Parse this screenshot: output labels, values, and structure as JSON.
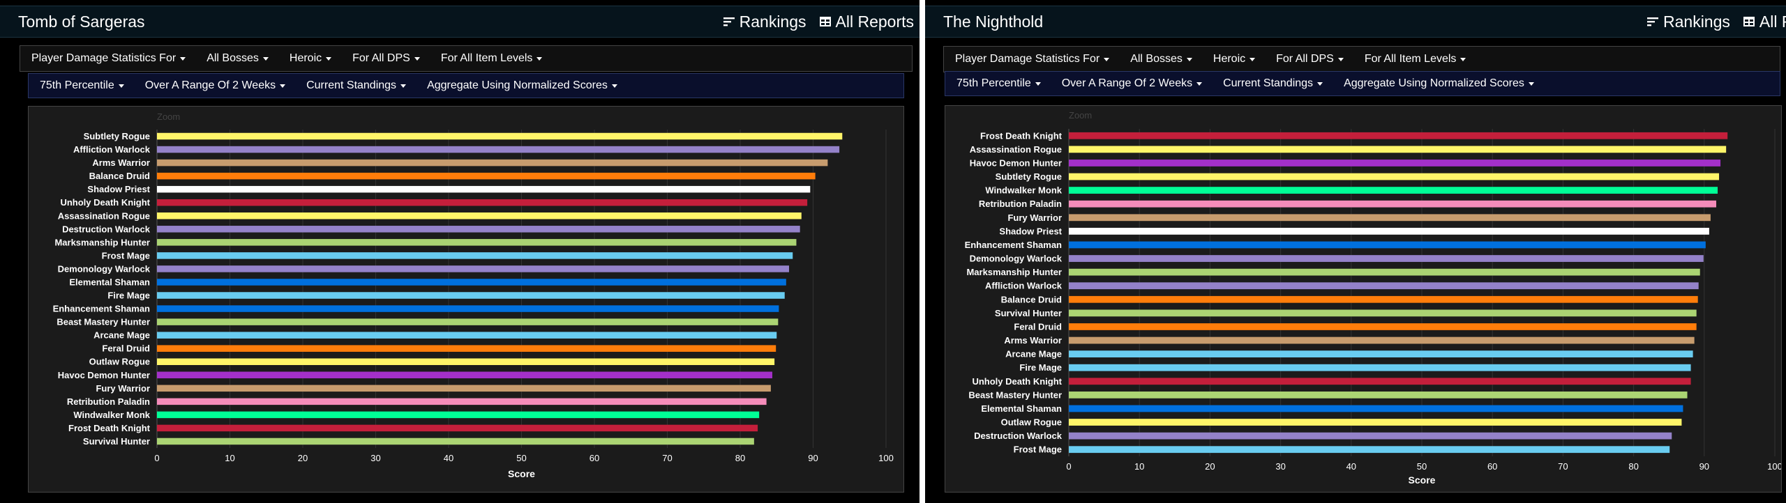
{
  "panels": [
    {
      "title": "Tomb of Sargeras",
      "links": {
        "rankings": "Rankings",
        "reports": "All Reports"
      },
      "filters": [
        "Player Damage Statistics For",
        "All Bosses",
        "Heroic",
        "For All DPS",
        "For All Item Levels"
      ],
      "subfilters": [
        "75th Percentile",
        "Over A Range Of 2 Weeks",
        "Current Standings",
        "Aggregate Using Normalized Scores"
      ],
      "zoom": "Zoom"
    },
    {
      "title": "The Nighthold",
      "links": {
        "rankings": "Rankings",
        "reports": "All Reports"
      },
      "filters": [
        "Player Damage Statistics For",
        "All Bosses",
        "Heroic",
        "For All DPS",
        "For All Item Levels"
      ],
      "subfilters": [
        "75th Percentile",
        "Over A Range Of 2 Weeks",
        "Current Standings",
        "Aggregate Using Normalized Scores"
      ],
      "zoom": "Zoom"
    }
  ],
  "chart_data": [
    {
      "type": "bar",
      "orientation": "horizontal",
      "title": "",
      "xlabel": "Score",
      "ylabel": "",
      "xlim": [
        0,
        100
      ],
      "xticks": [
        0,
        10,
        20,
        30,
        40,
        50,
        60,
        70,
        80,
        90,
        100
      ],
      "grid": true,
      "categories": [
        "Subtlety Rogue",
        "Affliction Warlock",
        "Arms Warrior",
        "Balance Druid",
        "Shadow Priest",
        "Unholy Death Knight",
        "Assassination Rogue",
        "Destruction Warlock",
        "Marksmanship Hunter",
        "Frost Mage",
        "Demonology Warlock",
        "Elemental Shaman",
        "Fire Mage",
        "Enhancement Shaman",
        "Beast Mastery Hunter",
        "Arcane Mage",
        "Feral Druid",
        "Outlaw Rogue",
        "Havoc Demon Hunter",
        "Fury Warrior",
        "Retribution Paladin",
        "Windwalker Monk",
        "Frost Death Knight",
        "Survival Hunter"
      ],
      "values": [
        94.0,
        93.6,
        92.0,
        90.3,
        89.6,
        89.2,
        88.4,
        88.2,
        87.7,
        87.2,
        86.7,
        86.3,
        86.1,
        85.3,
        85.2,
        85.0,
        84.9,
        84.7,
        84.4,
        84.2,
        83.6,
        82.6,
        82.4,
        81.9
      ],
      "colors": [
        "#fff569",
        "#9482c9",
        "#c79c6e",
        "#ff7d0a",
        "#ffffff",
        "#c41f3b",
        "#fff569",
        "#9482c9",
        "#abd473",
        "#69ccf0",
        "#9482c9",
        "#0070de",
        "#69ccf0",
        "#0070de",
        "#abd473",
        "#69ccf0",
        "#ff7d0a",
        "#fff569",
        "#a330c9",
        "#c79c6e",
        "#f58cba",
        "#00ff96",
        "#c41f3b",
        "#abd473"
      ]
    },
    {
      "type": "bar",
      "orientation": "horizontal",
      "title": "",
      "xlabel": "Score",
      "ylabel": "",
      "xlim": [
        0,
        100
      ],
      "xticks": [
        0,
        10,
        20,
        30,
        40,
        50,
        60,
        70,
        80,
        90,
        100
      ],
      "grid": true,
      "categories": [
        "Frost Death Knight",
        "Assassination Rogue",
        "Havoc Demon Hunter",
        "Subtlety Rogue",
        "Windwalker Monk",
        "Retribution Paladin",
        "Fury Warrior",
        "Shadow Priest",
        "Enhancement Shaman",
        "Demonology Warlock",
        "Marksmanship Hunter",
        "Affliction Warlock",
        "Balance Druid",
        "Survival Hunter",
        "Feral Druid",
        "Arms Warrior",
        "Arcane Mage",
        "Fire Mage",
        "Unholy Death Knight",
        "Beast Mastery Hunter",
        "Elemental Shaman",
        "Outlaw Rogue",
        "Destruction Warlock",
        "Frost Mage"
      ],
      "values": [
        93.3,
        93.1,
        92.3,
        92.1,
        91.9,
        91.7,
        90.9,
        90.7,
        90.2,
        89.9,
        89.4,
        89.2,
        89.1,
        88.9,
        88.9,
        88.6,
        88.4,
        88.1,
        88.1,
        87.6,
        87.0,
        86.8,
        85.4,
        85.1
      ],
      "colors": [
        "#c41f3b",
        "#fff569",
        "#a330c9",
        "#fff569",
        "#00ff96",
        "#f58cba",
        "#c79c6e",
        "#ffffff",
        "#0070de",
        "#9482c9",
        "#abd473",
        "#9482c9",
        "#ff7d0a",
        "#abd473",
        "#ff7d0a",
        "#c79c6e",
        "#69ccf0",
        "#69ccf0",
        "#c41f3b",
        "#abd473",
        "#0070de",
        "#fff569",
        "#9482c9",
        "#69ccf0"
      ]
    }
  ]
}
